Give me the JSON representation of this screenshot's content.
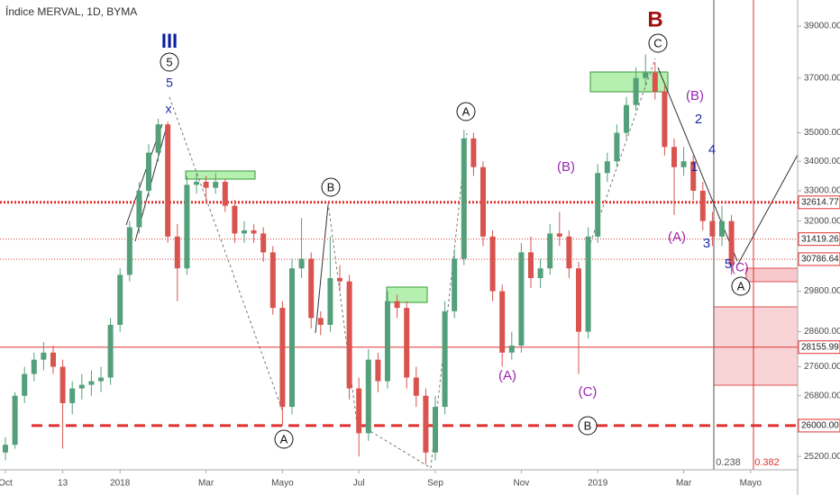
{
  "chart_data": {
    "type": "candlestick",
    "title": "Índice MERVAL, 1D, BYMA",
    "log_scale": true,
    "grid": false,
    "up_color": "#53a07a",
    "down_color": "#d9534f",
    "categories": [
      "Oct",
      null,
      null,
      null,
      null,
      null,
      "13",
      null,
      null,
      null,
      null,
      null,
      "2018",
      null,
      null,
      null,
      null,
      null,
      null,
      null,
      null,
      "Mar",
      null,
      null,
      null,
      null,
      null,
      null,
      null,
      "Mayo",
      null,
      null,
      null,
      null,
      null,
      null,
      null,
      "Jul",
      null,
      null,
      null,
      null,
      null,
      null,
      null,
      "Sep",
      null,
      null,
      null,
      null,
      null,
      null,
      null,
      null,
      "Nov",
      null,
      null,
      null,
      null,
      null,
      null,
      null,
      "2019",
      null,
      null,
      null,
      null,
      null,
      null,
      null,
      null,
      "Mar",
      null,
      null,
      null,
      null,
      null,
      null,
      "Mayo",
      null,
      null,
      null,
      null,
      null
    ],
    "open": [
      25300,
      25500,
      26800,
      27400,
      27800,
      28000,
      27600,
      26600,
      27000,
      27100,
      27200,
      27300,
      28800,
      30300,
      31800,
      33000,
      34300,
      35300,
      31500,
      30500,
      33200,
      33300,
      33100,
      33300,
      32500,
      31600,
      31700,
      31600,
      31000,
      29300,
      26500,
      30500,
      30800,
      29000,
      28800,
      30200,
      30100,
      27000,
      25800,
      27800,
      27200,
      29500,
      29300,
      27300,
      26800,
      25300,
      26500,
      29200,
      30800,
      34800,
      33800,
      31500,
      29800,
      28000,
      28200,
      31000,
      30200,
      30500,
      31600,
      31500,
      30500,
      28600,
      31500,
      33600,
      34000,
      35000,
      36000,
      37000,
      37200,
      36500,
      34500,
      33800,
      34000,
      33000,
      32000,
      31500,
      32000,
      null,
      null,
      null,
      null,
      null,
      null,
      null
    ],
    "high": [
      25700,
      26900,
      27600,
      28000,
      28300,
      28200,
      27800,
      27200,
      27400,
      27500,
      27600,
      29000,
      30500,
      32000,
      33300,
      34600,
      35500,
      35400,
      31900,
      33500,
      33600,
      33500,
      33600,
      33400,
      32700,
      32000,
      31900,
      31800,
      31200,
      29500,
      30800,
      32100,
      31000,
      29200,
      31500,
      30600,
      30300,
      27300,
      28100,
      28000,
      29800,
      29700,
      29500,
      27600,
      27000,
      26800,
      29500,
      31100,
      35100,
      35000,
      34000,
      31700,
      30000,
      28600,
      31300,
      31500,
      30800,
      31900,
      32300,
      31700,
      30700,
      31800,
      33900,
      34300,
      35300,
      36300,
      37400,
      37900,
      37600,
      36700,
      34800,
      34500,
      34200,
      33300,
      32300,
      32500,
      32200,
      null,
      null,
      null,
      null,
      null,
      null,
      null
    ],
    "low": [
      25100,
      25400,
      26600,
      27200,
      27500,
      27400,
      25400,
      26300,
      26700,
      26800,
      26900,
      27100,
      28600,
      30100,
      31600,
      32800,
      34000,
      31300,
      29500,
      30300,
      32900,
      32600,
      32900,
      32300,
      31300,
      31300,
      31300,
      30700,
      29100,
      26000,
      26300,
      30200,
      28700,
      28500,
      28600,
      29800,
      26700,
      25200,
      25600,
      26900,
      27000,
      29000,
      27000,
      26500,
      25000,
      25100,
      26300,
      29000,
      30600,
      33500,
      31200,
      29500,
      27600,
      27800,
      28000,
      29900,
      29900,
      30300,
      31200,
      30200,
      27400,
      28400,
      31300,
      33300,
      33800,
      34800,
      35800,
      36700,
      36200,
      34200,
      32200,
      33500,
      32700,
      31700,
      31200,
      31200,
      30300,
      null,
      null,
      null,
      null,
      null,
      null,
      null
    ],
    "close": [
      25500,
      26800,
      27400,
      27800,
      28000,
      27600,
      26600,
      27000,
      27100,
      27200,
      27300,
      28800,
      30300,
      31800,
      33000,
      34300,
      35300,
      31500,
      30500,
      33200,
      33300,
      33100,
      33300,
      32500,
      31600,
      31700,
      31600,
      31000,
      29300,
      26500,
      30500,
      30800,
      29000,
      28800,
      30200,
      30100,
      27000,
      25800,
      27800,
      27200,
      29500,
      29300,
      27300,
      26800,
      25300,
      26500,
      29200,
      30800,
      34800,
      33800,
      31500,
      29800,
      28000,
      28200,
      31000,
      30200,
      30500,
      31600,
      31500,
      30500,
      28600,
      31500,
      33600,
      34000,
      35000,
      36000,
      37000,
      37200,
      36500,
      34500,
      33800,
      34000,
      33000,
      32000,
      31500,
      32000,
      30600,
      null,
      null,
      null,
      null,
      null,
      null,
      null
    ],
    "ylim": [
      24860,
      40050
    ],
    "yticks": [
      {
        "value": 39000,
        "label": "39000.00"
      },
      {
        "value": 37000,
        "label": "37000.00"
      },
      {
        "value": 35000,
        "label": "35000.00"
      },
      {
        "value": 34000,
        "label": "34000.00"
      },
      {
        "value": 33000,
        "label": "33000.00"
      },
      {
        "value": 32000,
        "label": "32000.00"
      },
      {
        "value": 29800,
        "label": "29800.00"
      },
      {
        "value": 28600,
        "label": "28600.00"
      },
      {
        "value": 27600,
        "label": "27600.00"
      },
      {
        "value": 26800,
        "label": "26800.00"
      },
      {
        "value": 25200,
        "label": "25200.00"
      }
    ],
    "price_lines": [
      {
        "value": 32614.77,
        "label": "32614.77",
        "color": "#e03030",
        "style": "thick-dotted"
      },
      {
        "value": 31419.26,
        "label": "31419.26",
        "color": "#e03030",
        "style": "dotted"
      },
      {
        "value": 30786.64,
        "label": "30786.64",
        "color": "#e03030",
        "style": "dotted"
      },
      {
        "value": 28155.99,
        "label": "28155.99",
        "color": "#e03030",
        "style": "solid"
      },
      {
        "value": 26000,
        "label": "26000.00",
        "color": "#e03030",
        "style": "thick-dashed"
      }
    ],
    "annotations": [
      {
        "text": "III",
        "color": "#0d1fa0"
      },
      {
        "text": "5",
        "color": "#111111"
      },
      {
        "text": "5",
        "color": "#1a2aa8"
      },
      {
        "text": "x",
        "color": "#1a2aa8"
      },
      {
        "text": "B",
        "color": "#a01010"
      },
      {
        "text": "C",
        "color": "#111111"
      },
      {
        "text": "(B)",
        "color": "#9c27b0"
      },
      {
        "text": "2",
        "color": "#1a2aa8"
      },
      {
        "text": "4",
        "color": "#1a2aa8"
      },
      {
        "text": "1",
        "color": "#1a2aa8"
      },
      {
        "text": "(A)",
        "color": "#9c27b0"
      },
      {
        "text": "3",
        "color": "#1a2aa8"
      },
      {
        "text": "5",
        "color": "#1a2aa8"
      },
      {
        "text": "(C)",
        "color": "#9c27b0"
      },
      {
        "text": "A",
        "color": "#111111"
      },
      {
        "text": "A",
        "color": "#111111"
      },
      {
        "text": "(B)",
        "color": "#9c27b0"
      },
      {
        "text": "B",
        "color": "#111111"
      },
      {
        "text": "(A)",
        "color": "#9c27b0"
      },
      {
        "text": "(C)",
        "color": "#9c27b0"
      },
      {
        "text": "B",
        "color": "#111111"
      },
      {
        "text": "A",
        "color": "#111111"
      },
      {
        "text": "0.238",
        "color": "#555555"
      },
      {
        "text": "0.382",
        "color": "#e03030"
      }
    ]
  }
}
